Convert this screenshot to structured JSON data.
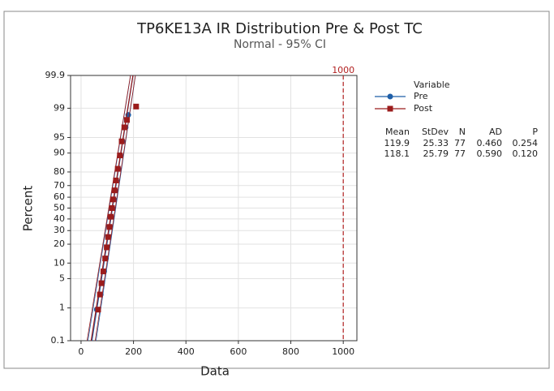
{
  "chart_data": {
    "type": "probability",
    "title": "TP6KE13A IR Distribution Pre & Post TC",
    "subtitle": "Normal - 95% CI",
    "x_label": "Data",
    "y_label": "Percent",
    "xlim": [
      -40,
      1052
    ],
    "xticks": [
      0,
      200,
      400,
      600,
      800,
      1000
    ],
    "ylim": [
      0.1,
      99.9
    ],
    "yticks": [
      0.1,
      1,
      5,
      10,
      20,
      30,
      40,
      50,
      60,
      70,
      80,
      90,
      95,
      99,
      99.9
    ],
    "grid": true,
    "reference_line": {
      "value": 1000,
      "color": "#b22222"
    },
    "legend_title": "Variable",
    "stats_headers": [
      "Mean",
      "StDev",
      "N",
      "AD",
      "P"
    ],
    "series": [
      {
        "name": "Pre",
        "color": "#1f5fa8",
        "marker": "circle",
        "x": [
          60,
          75,
          80,
          88,
          95,
          100,
          105,
          110,
          115,
          120,
          125,
          130,
          135,
          142,
          150,
          158,
          170,
          180
        ],
        "values": [
          0.9,
          2.2,
          4,
          7,
          12,
          18,
          25,
          33,
          42,
          50,
          58,
          66,
          74,
          82,
          89,
          94,
          97,
          98.5
        ],
        "mean": 119.9,
        "stdev": 25.33,
        "n": 77,
        "ad": {
          "value": 0.46,
          "label": "0.460"
        },
        "p": 0.254
      },
      {
        "name": "Post",
        "color": "#9b1c1c",
        "marker": "square",
        "x": [
          65,
          72,
          78,
          85,
          92,
          98,
          103,
          108,
          113,
          118,
          122,
          128,
          133,
          140,
          148,
          155,
          165,
          175,
          210
        ],
        "values": [
          0.9,
          2.2,
          4,
          7,
          12,
          18,
          25,
          33,
          42,
          50,
          58,
          66,
          74,
          82,
          89,
          94,
          97,
          98,
          99.1
        ],
        "mean": 118.1,
        "stdev": 25.79,
        "n": 77,
        "ad": {
          "value": 0.59,
          "label": "0.590"
        },
        "p": {
          "value": 0.12,
          "label": "0.120"
        }
      }
    ]
  }
}
